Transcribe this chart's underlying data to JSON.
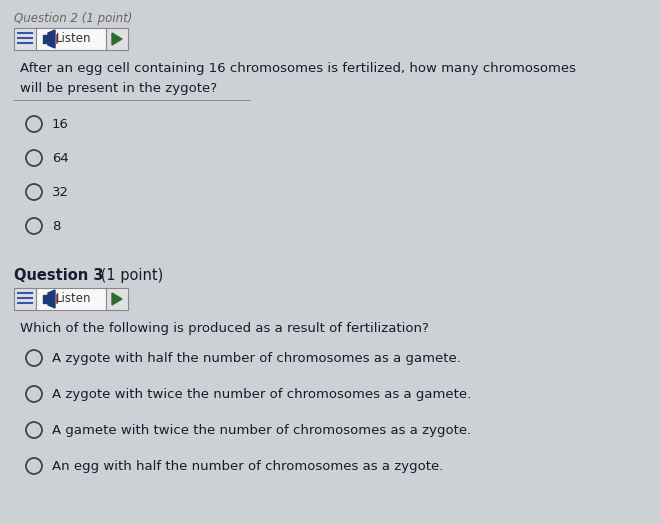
{
  "bg_color": "#cdd0d4",
  "header_text": "Question 2 (1 point)",
  "header_color": "#666666",
  "header_fontsize": 8.5,
  "q2_text_line1": "After an egg cell containing 16 chromosomes is fertilized, how many chromosomes",
  "q2_text_line2": "will be present in the zygote?",
  "q2_options": [
    "16",
    "64",
    "32",
    "8"
  ],
  "q3_header_bold": "Question 3",
  "q3_header_normal": " (1 point)",
  "q3_text": "Which of the following is produced as a result of fertilization?",
  "q3_options": [
    "A zygote with half the number of chromosomes as a gamete.",
    "A zygote with twice the number of chromosomes as a gamete.",
    "A gamete with twice the number of chromosomes as a zygote.",
    "An egg with half the number of chromosomes as a zygote."
  ],
  "button_bg": "#f0f0f0",
  "listen_bg": "#ffffff",
  "button_border": "#999999",
  "button_text_color": "#333333",
  "listen_icon_color": "#1a3a7a",
  "play_icon_color": "#2d6e2d",
  "radio_color": "#444444",
  "text_color": "#1a1a2e",
  "question_text_fontsize": 9.5,
  "option_fontsize": 9.5,
  "q3_bold_fontsize": 10.5
}
